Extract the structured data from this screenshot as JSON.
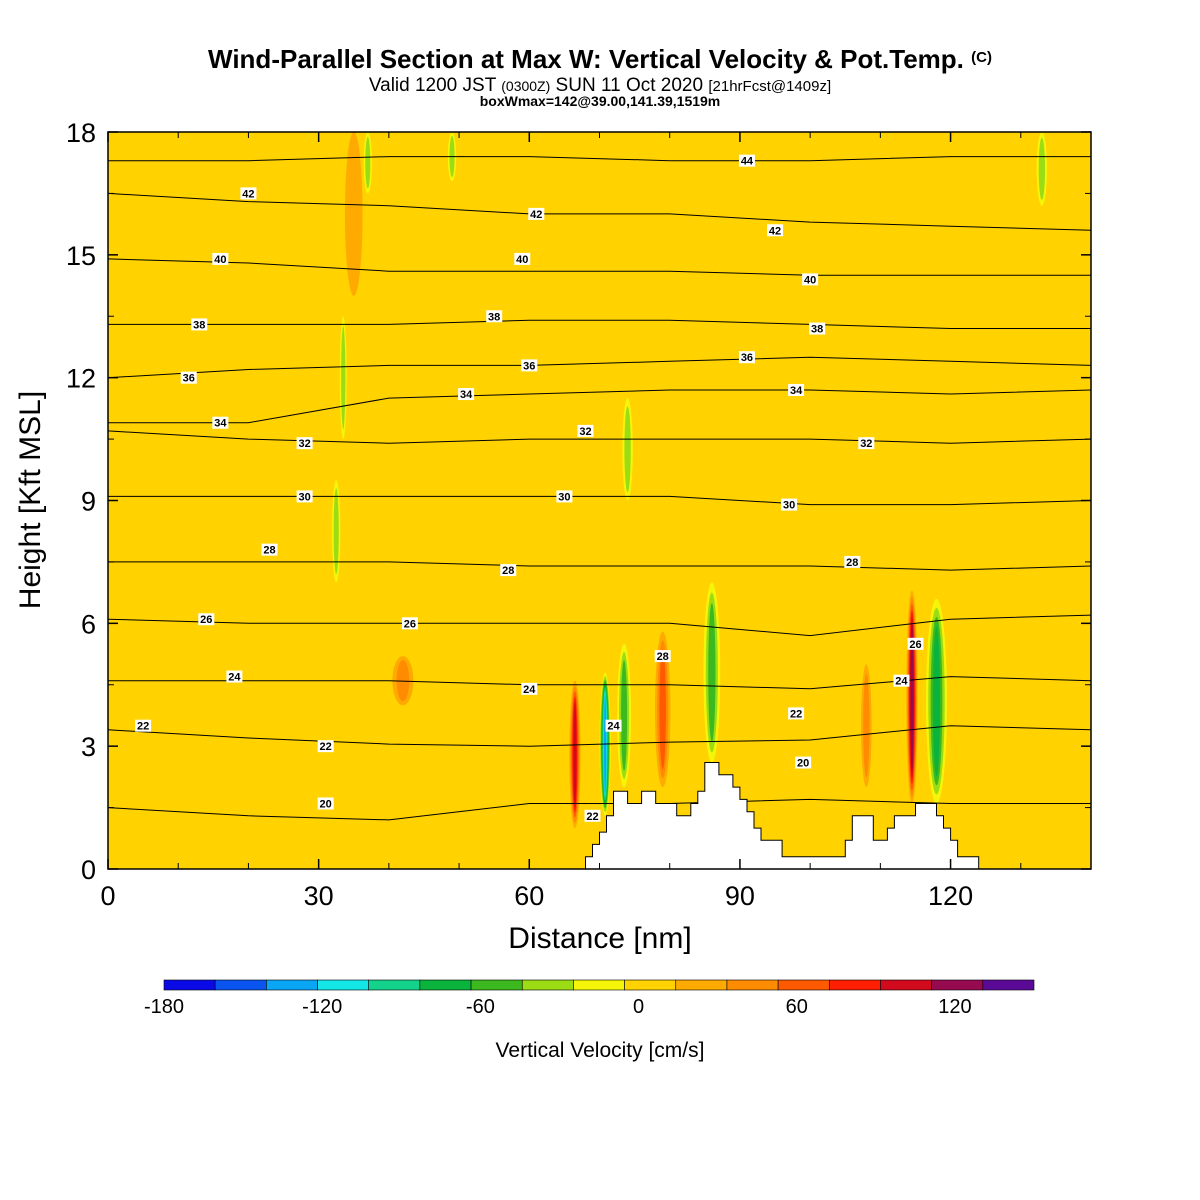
{
  "chart_data": {
    "type": "heatmap",
    "title": "Wind-Parallel Section at Max W: Vertical Velocity & Pot.Temp.",
    "copyright_mark": "(C)",
    "subtitle_parts": [
      "Valid 1200 JST ",
      "(0300Z)",
      " SUN 11 Oct 2020 ",
      "[21hrFcst@1409z]"
    ],
    "subtitle2": "boxWmax=142@39.00,141.39,1519m",
    "xlabel": "Distance [nm]",
    "ylabel": "Height [Kft MSL]",
    "xlim": [
      0,
      140
    ],
    "ylim": [
      0,
      18
    ],
    "xticks": [
      0,
      30,
      60,
      90,
      120
    ],
    "yticks": [
      0,
      3,
      6,
      9,
      12,
      15,
      18
    ],
    "colorbar": {
      "label": "Vertical Velocity [cm/s]",
      "range": [
        -180,
        150
      ],
      "ticks": [
        -180,
        -120,
        -60,
        0,
        60,
        120
      ],
      "colors": [
        "#0a0ae6",
        "#0a55f0",
        "#0aa5f5",
        "#14e6e6",
        "#14d28c",
        "#0ab43c",
        "#3cb91e",
        "#9bdc14",
        "#f5f50a",
        "#ffd200",
        "#ffaa00",
        "#ff8c00",
        "#ff5a00",
        "#ff1e00",
        "#d20a1e",
        "#960a50",
        "#5a0a96"
      ]
    },
    "theta_contours": [
      {
        "value": 20,
        "levels": [
          1.5,
          1.3,
          1.2,
          1.6,
          1.6,
          1.7,
          1.6,
          1.6
        ]
      },
      {
        "value": 22,
        "levels": [
          3.4,
          3.2,
          3.05,
          3.0,
          3.1,
          3.15,
          3.5,
          3.4
        ]
      },
      {
        "value": 24,
        "levels": [
          4.6,
          4.6,
          4.6,
          4.5,
          4.5,
          4.4,
          4.7,
          4.6
        ]
      },
      {
        "value": 26,
        "levels": [
          6.1,
          6.0,
          6.0,
          6.0,
          6.0,
          5.7,
          6.1,
          6.2
        ]
      },
      {
        "value": 28,
        "levels": [
          7.5,
          7.5,
          7.5,
          7.4,
          7.4,
          7.4,
          7.3,
          7.4
        ]
      },
      {
        "value": 30,
        "levels": [
          9.1,
          9.1,
          9.1,
          9.1,
          9.1,
          8.9,
          8.9,
          9.0
        ]
      },
      {
        "value": 32,
        "levels": [
          10.7,
          10.5,
          10.4,
          10.5,
          10.5,
          10.5,
          10.4,
          10.5
        ]
      },
      {
        "value": 34,
        "levels": [
          10.9,
          10.9,
          11.5,
          11.6,
          11.7,
          11.7,
          11.6,
          11.7
        ]
      },
      {
        "value": 36,
        "levels": [
          12.0,
          12.2,
          12.3,
          12.3,
          12.4,
          12.5,
          12.4,
          12.3
        ]
      },
      {
        "value": 38,
        "levels": [
          13.3,
          13.3,
          13.3,
          13.4,
          13.4,
          13.3,
          13.2,
          13.2
        ]
      },
      {
        "value": 40,
        "levels": [
          14.9,
          14.8,
          14.6,
          14.6,
          14.6,
          14.5,
          14.5,
          14.5
        ]
      },
      {
        "value": 42,
        "levels": [
          16.5,
          16.3,
          16.2,
          16.0,
          16.0,
          15.8,
          15.7,
          15.6
        ]
      },
      {
        "value": 44,
        "levels": [
          17.3,
          17.3,
          17.4,
          17.4,
          17.3,
          17.3,
          17.4,
          17.4
        ]
      }
    ],
    "contour_labels": [
      {
        "text": "42",
        "x": 20,
        "y": 16.5
      },
      {
        "text": "40",
        "x": 16,
        "y": 14.9
      },
      {
        "text": "38",
        "x": 13,
        "y": 13.3
      },
      {
        "text": "36",
        "x": 11.5,
        "y": 12.0
      },
      {
        "text": "34",
        "x": 16,
        "y": 10.9
      },
      {
        "text": "32",
        "x": 28,
        "y": 10.4
      },
      {
        "text": "30",
        "x": 28,
        "y": 9.1
      },
      {
        "text": "28",
        "x": 23,
        "y": 7.8
      },
      {
        "text": "26",
        "x": 14,
        "y": 6.1
      },
      {
        "text": "24",
        "x": 18,
        "y": 4.7
      },
      {
        "text": "22",
        "x": 5,
        "y": 3.5
      },
      {
        "text": "22",
        "x": 31,
        "y": 3.0
      },
      {
        "text": "20",
        "x": 31,
        "y": 1.6
      },
      {
        "text": "42",
        "x": 61,
        "y": 16.0
      },
      {
        "text": "40",
        "x": 59,
        "y": 14.9
      },
      {
        "text": "38",
        "x": 55,
        "y": 13.5
      },
      {
        "text": "36",
        "x": 60,
        "y": 12.3
      },
      {
        "text": "34",
        "x": 51,
        "y": 11.6
      },
      {
        "text": "32",
        "x": 68,
        "y": 10.7
      },
      {
        "text": "30",
        "x": 65,
        "y": 9.1
      },
      {
        "text": "28",
        "x": 57,
        "y": 7.3
      },
      {
        "text": "26",
        "x": 43,
        "y": 6.0
      },
      {
        "text": "24",
        "x": 60,
        "y": 4.4
      },
      {
        "text": "44",
        "x": 91,
        "y": 17.3
      },
      {
        "text": "42",
        "x": 95,
        "y": 15.6
      },
      {
        "text": "40",
        "x": 100,
        "y": 14.4
      },
      {
        "text": "38",
        "x": 101,
        "y": 13.2
      },
      {
        "text": "36",
        "x": 91,
        "y": 12.5
      },
      {
        "text": "34",
        "x": 98,
        "y": 11.7
      },
      {
        "text": "32",
        "x": 108,
        "y": 10.4
      },
      {
        "text": "30",
        "x": 97,
        "y": 8.9
      },
      {
        "text": "28",
        "x": 106,
        "y": 7.5
      },
      {
        "text": "22",
        "x": 98,
        "y": 3.8
      },
      {
        "text": "20",
        "x": 99,
        "y": 2.6
      },
      {
        "text": "28",
        "x": 79,
        "y": 5.2
      },
      {
        "text": "24",
        "x": 72,
        "y": 3.5
      },
      {
        "text": "22",
        "x": 69,
        "y": 1.3
      },
      {
        "text": "26",
        "x": 115,
        "y": 5.5
      },
      {
        "text": "24",
        "x": 113,
        "y": 4.6
      }
    ],
    "terrain": [
      [
        0,
        0
      ],
      [
        68,
        0
      ],
      [
        68,
        0.3
      ],
      [
        69,
        0.3
      ],
      [
        69,
        0.6
      ],
      [
        70,
        0.6
      ],
      [
        70,
        0.9
      ],
      [
        71,
        0.9
      ],
      [
        71,
        1.3
      ],
      [
        72,
        1.3
      ],
      [
        72,
        1.9
      ],
      [
        74,
        1.9
      ],
      [
        74,
        1.6
      ],
      [
        76,
        1.6
      ],
      [
        76,
        1.9
      ],
      [
        78,
        1.9
      ],
      [
        78,
        1.6
      ],
      [
        81,
        1.6
      ],
      [
        81,
        1.3
      ],
      [
        83,
        1.3
      ],
      [
        83,
        1.6
      ],
      [
        84,
        1.6
      ],
      [
        84,
        1.9
      ],
      [
        85,
        1.9
      ],
      [
        85,
        2.6
      ],
      [
        87,
        2.6
      ],
      [
        87,
        2.3
      ],
      [
        89,
        2.3
      ],
      [
        89,
        2.0
      ],
      [
        90,
        2.0
      ],
      [
        90,
        1.7
      ],
      [
        91,
        1.7
      ],
      [
        91,
        1.4
      ],
      [
        92,
        1.4
      ],
      [
        92,
        1.0
      ],
      [
        93,
        1.0
      ],
      [
        93,
        0.7
      ],
      [
        96,
        0.7
      ],
      [
        96,
        0.3
      ],
      [
        105,
        0.3
      ],
      [
        105,
        0.7
      ],
      [
        106,
        0.7
      ],
      [
        106,
        1.3
      ],
      [
        109,
        1.3
      ],
      [
        109,
        0.7
      ],
      [
        111,
        0.7
      ],
      [
        111,
        1.0
      ],
      [
        112,
        1.0
      ],
      [
        112,
        1.3
      ],
      [
        115,
        1.3
      ],
      [
        115,
        1.6
      ],
      [
        118,
        1.6
      ],
      [
        118,
        1.3
      ],
      [
        119,
        1.3
      ],
      [
        119,
        1.0
      ],
      [
        120,
        1.0
      ],
      [
        120,
        0.7
      ],
      [
        121,
        0.7
      ],
      [
        121,
        0.3
      ],
      [
        124,
        0.3
      ],
      [
        124,
        0
      ],
      [
        140,
        0
      ]
    ],
    "w_features": [
      {
        "x": 66.5,
        "y0": 1.0,
        "y1": 4.6,
        "w": 110,
        "width": 1.6
      },
      {
        "x": 70.8,
        "y0": 1.3,
        "y1": 4.8,
        "w": -150,
        "width": 1.6
      },
      {
        "x": 73.5,
        "y0": 2.0,
        "y1": 5.5,
        "w": -60,
        "width": 2.0
      },
      {
        "x": 79,
        "y0": 2.0,
        "y1": 5.8,
        "w": 70,
        "width": 2.2
      },
      {
        "x": 86,
        "y0": 2.6,
        "y1": 7.0,
        "w": -70,
        "width": 2.4
      },
      {
        "x": 114.5,
        "y0": 1.6,
        "y1": 6.8,
        "w": 130,
        "width": 1.6
      },
      {
        "x": 118,
        "y0": 1.6,
        "y1": 6.6,
        "w": -80,
        "width": 3.0
      },
      {
        "x": 32.5,
        "y0": 7.0,
        "y1": 9.5,
        "w": -50,
        "width": 1.2
      },
      {
        "x": 33.5,
        "y0": 10.5,
        "y1": 13.5,
        "w": -40,
        "width": 1.0
      },
      {
        "x": 37,
        "y0": 16.5,
        "y1": 18,
        "w": -40,
        "width": 1.2
      },
      {
        "x": 49,
        "y0": 16.8,
        "y1": 18,
        "w": -40,
        "width": 1.2
      },
      {
        "x": 74,
        "y0": 9.0,
        "y1": 11.5,
        "w": -50,
        "width": 1.5
      },
      {
        "x": 133,
        "y0": 16.2,
        "y1": 18,
        "w": -40,
        "width": 1.5
      },
      {
        "x": 42,
        "y0": 4.0,
        "y1": 5.2,
        "w": 40,
        "width": 3.0
      },
      {
        "x": 35,
        "y0": 14.0,
        "y1": 18,
        "w": 35,
        "width": 2.5
      },
      {
        "x": 108,
        "y0": 2.0,
        "y1": 5.0,
        "w": 40,
        "width": 1.5
      }
    ]
  }
}
